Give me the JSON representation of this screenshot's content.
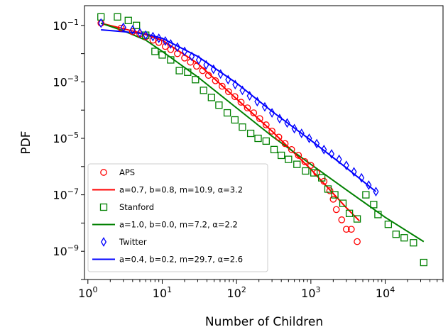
{
  "chart_data": {
    "type": "scatter",
    "xlabel": "Number of Children",
    "ylabel": "PDF",
    "x_scale": "log",
    "y_scale": "log",
    "xlim": [
      0.9,
      60000
    ],
    "ylim": [
      1e-10,
      0.5
    ],
    "x_ticks": [
      {
        "value": 1,
        "base": "10",
        "exp": "0"
      },
      {
        "value": 10,
        "base": "10",
        "exp": "1"
      },
      {
        "value": 100,
        "base": "10",
        "exp": "2"
      },
      {
        "value": 1000,
        "base": "10",
        "exp": "3"
      },
      {
        "value": 10000,
        "base": "10",
        "exp": "4"
      }
    ],
    "y_ticks": [
      {
        "value": 0.1,
        "base": "10",
        "exp": "−1"
      },
      {
        "value": 0.001,
        "base": "10",
        "exp": "−3"
      },
      {
        "value": 1e-05,
        "base": "10",
        "exp": "−5"
      },
      {
        "value": 1e-07,
        "base": "10",
        "exp": "−7"
      },
      {
        "value": 1e-09,
        "base": "10",
        "exp": "−9"
      }
    ],
    "grid": false,
    "legend_position": "lower-left",
    "series": [
      {
        "name": "APS",
        "marker": "circle",
        "color": "#ff0000",
        "points": [
          [
            1.5,
            0.12
          ],
          [
            2.8,
            0.08
          ],
          [
            4.0,
            0.06
          ],
          [
            5.0,
            0.05
          ],
          [
            6.0,
            0.04
          ],
          [
            7.5,
            0.03
          ],
          [
            9.0,
            0.025
          ],
          [
            11.0,
            0.018
          ],
          [
            13.0,
            0.014
          ],
          [
            16.0,
            0.01
          ],
          [
            20.0,
            0.007
          ],
          [
            24.0,
            0.005
          ],
          [
            29.0,
            0.0036
          ],
          [
            35.0,
            0.0025
          ],
          [
            42.0,
            0.0017
          ],
          [
            52.0,
            0.0011
          ],
          [
            64.0,
            0.0007
          ],
          [
            78.0,
            0.00045
          ],
          [
            95.0,
            0.0003
          ],
          [
            115.0,
            0.00019
          ],
          [
            140.0,
            0.00012
          ],
          [
            170.0,
            8e-05
          ],
          [
            205.0,
            5e-05
          ],
          [
            250.0,
            3e-05
          ],
          [
            300.0,
            1.8e-05
          ],
          [
            370.0,
            1.1e-05
          ],
          [
            450.0,
            6.5e-06
          ],
          [
            550.0,
            4e-06
          ],
          [
            680.0,
            2.5e-06
          ],
          [
            830.0,
            1.5e-06
          ],
          [
            1000.0,
            1.1e-06
          ],
          [
            1200.0,
            6e-07
          ],
          [
            1500.0,
            3e-07
          ],
          [
            1800.0,
            1.4e-07
          ],
          [
            2000.0,
            7e-08
          ],
          [
            2200.0,
            3e-08
          ],
          [
            2600.0,
            1.3e-08
          ],
          [
            3000.0,
            6e-09
          ],
          [
            3500.0,
            6e-09
          ],
          [
            4200.0,
            2.2e-09
          ]
        ],
        "fit": {
          "label": "a=0.7, b=0.8, m=10.9, α=3.2",
          "points": [
            [
              1.5,
              0.12
            ],
            [
              5,
              0.055
            ],
            [
              10,
              0.03
            ],
            [
              30,
              0.0045
            ],
            [
              100,
              0.00025
            ],
            [
              300,
              1.8e-05
            ],
            [
              1000,
              8e-07
            ],
            [
              3000,
              3.5e-08
            ],
            [
              4500,
              1.2e-08
            ]
          ]
        }
      },
      {
        "name": "Stanford",
        "marker": "square",
        "color": "#008000",
        "points": [
          [
            1.5,
            0.2
          ],
          [
            2.5,
            0.2
          ],
          [
            3.5,
            0.15
          ],
          [
            4.5,
            0.1
          ],
          [
            6.0,
            0.045
          ],
          [
            8.0,
            0.012
          ],
          [
            10.0,
            0.009
          ],
          [
            13.0,
            0.006
          ],
          [
            17.0,
            0.0025
          ],
          [
            22.0,
            0.0022
          ],
          [
            28.0,
            0.0012
          ],
          [
            36.0,
            0.0005
          ],
          [
            46.0,
            0.00028
          ],
          [
            58.0,
            0.00015
          ],
          [
            75.0,
            8e-05
          ],
          [
            95.0,
            4.5e-05
          ],
          [
            120.0,
            2.5e-05
          ],
          [
            155.0,
            1.5e-05
          ],
          [
            195.0,
            1e-05
          ],
          [
            250.0,
            8e-06
          ],
          [
            320.0,
            4e-06
          ],
          [
            400.0,
            2.5e-06
          ],
          [
            500.0,
            1.8e-06
          ],
          [
            650.0,
            1.2e-06
          ],
          [
            850.0,
            7e-07
          ],
          [
            1100.0,
            6e-07
          ],
          [
            1400.0,
            4e-07
          ],
          [
            1700.0,
            1.6e-07
          ],
          [
            2100.0,
            1e-07
          ],
          [
            2700.0,
            5e-08
          ],
          [
            3300.0,
            2.2e-08
          ],
          [
            4200.0,
            1.4e-08
          ],
          [
            5500.0,
            1e-07
          ],
          [
            7000.0,
            4.5e-08
          ],
          [
            8000.0,
            2e-08
          ],
          [
            11000.0,
            9e-09
          ],
          [
            14000.0,
            4e-09
          ],
          [
            18000.0,
            3e-09
          ],
          [
            24000.0,
            2e-09
          ],
          [
            33000.0,
            4e-10
          ]
        ],
        "fit": {
          "label": "a=1.0, b=0.0, m=7.2, α=2.2",
          "points": [
            [
              1.5,
              0.12
            ],
            [
              3,
              0.065
            ],
            [
              6,
              0.03
            ],
            [
              10,
              0.012
            ],
            [
              30,
              0.0015
            ],
            [
              100,
              0.00012
            ],
            [
              300,
              1.2e-05
            ],
            [
              1000,
              1.2e-06
            ],
            [
              3000,
              1.5e-07
            ],
            [
              10000,
              1.6e-08
            ],
            [
              33000,
              2.2e-09
            ]
          ]
        }
      },
      {
        "name": "Twitter",
        "marker": "diamond",
        "color": "#0000ff",
        "points": [
          [
            1.5,
            0.12
          ],
          [
            3.0,
            0.085
          ],
          [
            4.0,
            0.07
          ],
          [
            5.0,
            0.055
          ],
          [
            6.0,
            0.045
          ],
          [
            7.5,
            0.04
          ],
          [
            9.0,
            0.035
          ],
          [
            11.0,
            0.028
          ],
          [
            13.0,
            0.022
          ],
          [
            16.0,
            0.017
          ],
          [
            20.0,
            0.012
          ],
          [
            25.0,
            0.008
          ],
          [
            31.0,
            0.006
          ],
          [
            39.0,
            0.004
          ],
          [
            49.0,
            0.0028
          ],
          [
            61.0,
            0.0019
          ],
          [
            77.0,
            0.0012
          ],
          [
            96.0,
            0.0008
          ],
          [
            120.0,
            0.0005
          ],
          [
            150.0,
            0.00032
          ],
          [
            190.0,
            0.0002
          ],
          [
            240.0,
            0.00013
          ],
          [
            300.0,
            8e-05
          ],
          [
            380.0,
            5e-05
          ],
          [
            480.0,
            3.5e-05
          ],
          [
            600.0,
            2.2e-05
          ],
          [
            750.0,
            1.5e-05
          ],
          [
            950.0,
            1e-05
          ],
          [
            1200.0,
            6.5e-06
          ],
          [
            1500.0,
            4e-06
          ],
          [
            1900.0,
            2.8e-06
          ],
          [
            2400.0,
            1.8e-06
          ],
          [
            3000.0,
            1.1e-06
          ],
          [
            3800.0,
            6.5e-07
          ],
          [
            4800.0,
            4e-07
          ],
          [
            6000.0,
            2.2e-07
          ],
          [
            7500.0,
            1.3e-07
          ]
        ],
        "fit": {
          "label": "a=0.4, b=0.2, m=29.7, α=2.6",
          "points": [
            [
              1.5,
              0.07
            ],
            [
              3,
              0.06
            ],
            [
              6,
              0.05
            ],
            [
              10,
              0.035
            ],
            [
              30,
              0.008
            ],
            [
              100,
              0.0009
            ],
            [
              300,
              9e-05
            ],
            [
              1000,
              8.5e-06
            ],
            [
              3000,
              9e-07
            ],
            [
              7500,
              1.3e-07
            ]
          ]
        }
      }
    ]
  }
}
